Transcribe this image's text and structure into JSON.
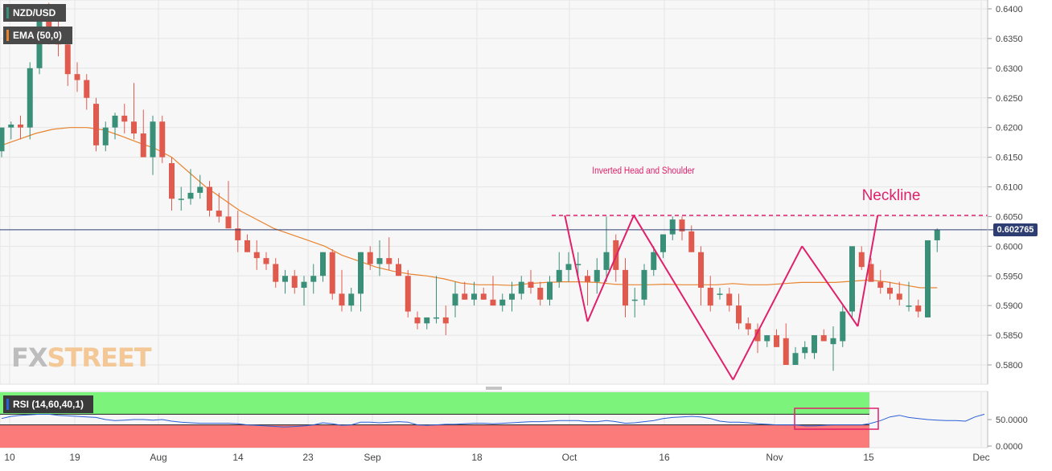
{
  "legend": {
    "pair": "NZD/USD",
    "ema": "EMA (50,0)",
    "rsi": "RSI (14,60,40,1)"
  },
  "watermark": {
    "fx": "FX",
    "street": "STREET"
  },
  "price_label": "0.602765",
  "annotations": {
    "pattern": "Inverted Head and Shoulder",
    "neckline": "Neckline"
  },
  "colors": {
    "bull": "#3a8f78",
    "bear": "#e05a4e",
    "ema": "#e8842f",
    "pattern": "#e0206b",
    "price_line": "#2e3e72",
    "rsi_line": "#2a5fd6",
    "rsi_upper": "#7cf47c",
    "rsi_lower": "#fb7a7a"
  },
  "chart_data": [
    {
      "type": "candlestick",
      "title": "NZD/USD",
      "y_ticks": [
        "0.6400",
        "0.6350",
        "0.6300",
        "0.6250",
        "0.6200",
        "0.6150",
        "0.6100",
        "0.6050",
        "0.6000",
        "0.5950",
        "0.5900",
        "0.5850",
        "0.5800"
      ],
      "ylim": [
        0.577,
        0.641
      ],
      "x_ticks": [
        "10",
        "19",
        "Aug",
        "14",
        "23",
        "Sep",
        "18",
        "Oct",
        "16",
        "Nov",
        "15",
        "Dec"
      ],
      "grid": true,
      "last_price": 0.602765,
      "neckline": 0.6052,
      "candles": [
        [
          0.616,
          0.62,
          0.615,
          0.62
        ],
        [
          0.62,
          0.621,
          0.618,
          0.6205
        ],
        [
          0.6205,
          0.622,
          0.618,
          0.62
        ],
        [
          0.62,
          0.631,
          0.618,
          0.63
        ],
        [
          0.63,
          0.64,
          0.629,
          0.639
        ],
        [
          0.639,
          0.641,
          0.634,
          0.636
        ],
        [
          0.636,
          0.638,
          0.632,
          0.634
        ],
        [
          0.634,
          0.635,
          0.627,
          0.629
        ],
        [
          0.629,
          0.631,
          0.626,
          0.628
        ],
        [
          0.628,
          0.629,
          0.623,
          0.625
        ],
        [
          0.624,
          0.625,
          0.616,
          0.617
        ],
        [
          0.617,
          0.621,
          0.616,
          0.62
        ],
        [
          0.62,
          0.6225,
          0.618,
          0.622
        ],
        [
          0.622,
          0.624,
          0.619,
          0.621
        ],
        [
          0.621,
          0.6275,
          0.618,
          0.619
        ],
        [
          0.619,
          0.623,
          0.615,
          0.615
        ],
        [
          0.615,
          0.622,
          0.612,
          0.621
        ],
        [
          0.621,
          0.622,
          0.614,
          0.615
        ],
        [
          0.614,
          0.615,
          0.606,
          0.608
        ],
        [
          0.608,
          0.61,
          0.606,
          0.608
        ],
        [
          0.608,
          0.613,
          0.607,
          0.609
        ],
        [
          0.609,
          0.612,
          0.608,
          0.61
        ],
        [
          0.61,
          0.611,
          0.605,
          0.606
        ],
        [
          0.606,
          0.609,
          0.604,
          0.605
        ],
        [
          0.605,
          0.611,
          0.603,
          0.603
        ],
        [
          0.603,
          0.606,
          0.599,
          0.601
        ],
        [
          0.601,
          0.602,
          0.599,
          0.599
        ],
        [
          0.599,
          0.601,
          0.596,
          0.598
        ],
        [
          0.598,
          0.599,
          0.596,
          0.597
        ],
        [
          0.597,
          0.598,
          0.593,
          0.594
        ],
        [
          0.594,
          0.596,
          0.592,
          0.595
        ],
        [
          0.595,
          0.596,
          0.592,
          0.593
        ],
        [
          0.593,
          0.595,
          0.59,
          0.594
        ],
        [
          0.594,
          0.597,
          0.592,
          0.595
        ],
        [
          0.595,
          0.599,
          0.594,
          0.599
        ],
        [
          0.599,
          0.5995,
          0.591,
          0.592
        ],
        [
          0.592,
          0.596,
          0.589,
          0.59
        ],
        [
          0.59,
          0.593,
          0.589,
          0.592
        ],
        [
          0.592,
          0.599,
          0.589,
          0.599
        ],
        [
          0.599,
          0.6,
          0.596,
          0.597
        ],
        [
          0.597,
          0.601,
          0.595,
          0.598
        ],
        [
          0.598,
          0.6015,
          0.596,
          0.597
        ],
        [
          0.597,
          0.598,
          0.595,
          0.595
        ],
        [
          0.595,
          0.596,
          0.588,
          0.589
        ],
        [
          0.588,
          0.589,
          0.586,
          0.587
        ],
        [
          0.587,
          0.588,
          0.586,
          0.588
        ],
        [
          0.588,
          0.595,
          0.587,
          0.588
        ],
        [
          0.588,
          0.59,
          0.585,
          0.587
        ],
        [
          0.59,
          0.594,
          0.588,
          0.592
        ],
        [
          0.592,
          0.594,
          0.591,
          0.591
        ],
        [
          0.591,
          0.594,
          0.59,
          0.592
        ],
        [
          0.592,
          0.593,
          0.591,
          0.591
        ],
        [
          0.591,
          0.595,
          0.59,
          0.59
        ],
        [
          0.59,
          0.592,
          0.589,
          0.591
        ],
        [
          0.591,
          0.594,
          0.589,
          0.592
        ],
        [
          0.592,
          0.595,
          0.591,
          0.594
        ],
        [
          0.594,
          0.596,
          0.592,
          0.593
        ],
        [
          0.593,
          0.594,
          0.59,
          0.591
        ],
        [
          0.591,
          0.595,
          0.59,
          0.594
        ],
        [
          0.594,
          0.599,
          0.593,
          0.596
        ],
        [
          0.596,
          0.599,
          0.594,
          0.597
        ],
        [
          0.597,
          0.599,
          0.595,
          0.597
        ],
        [
          0.595,
          0.596,
          0.59,
          0.594
        ],
        [
          0.594,
          0.598,
          0.592,
          0.596
        ],
        [
          0.596,
          0.605,
          0.594,
          0.599
        ],
        [
          0.601,
          0.602,
          0.594,
          0.596
        ],
        [
          0.596,
          0.598,
          0.588,
          0.59
        ],
        [
          0.591,
          0.593,
          0.588,
          0.591
        ],
        [
          0.591,
          0.597,
          0.59,
          0.596
        ],
        [
          0.596,
          0.6,
          0.595,
          0.599
        ],
        [
          0.599,
          0.602,
          0.598,
          0.602
        ],
        [
          0.602,
          0.605,
          0.601,
          0.6045
        ],
        [
          0.6045,
          0.605,
          0.601,
          0.6025
        ],
        [
          0.6025,
          0.6035,
          0.599,
          0.599
        ],
        [
          0.599,
          0.6,
          0.59,
          0.593
        ],
        [
          0.593,
          0.595,
          0.589,
          0.59
        ],
        [
          0.592,
          0.593,
          0.591,
          0.592
        ],
        [
          0.592,
          0.593,
          0.589,
          0.59
        ],
        [
          0.59,
          0.592,
          0.586,
          0.587
        ],
        [
          0.587,
          0.588,
          0.585,
          0.586
        ],
        [
          0.586,
          0.587,
          0.582,
          0.584
        ],
        [
          0.584,
          0.585,
          0.583,
          0.585
        ],
        [
          0.585,
          0.586,
          0.583,
          0.583
        ],
        [
          0.5845,
          0.587,
          0.58,
          0.58
        ],
        [
          0.58,
          0.583,
          0.58,
          0.582
        ],
        [
          0.582,
          0.584,
          0.581,
          0.583
        ],
        [
          0.582,
          0.585,
          0.581,
          0.585
        ],
        [
          0.585,
          0.586,
          0.584,
          0.584
        ],
        [
          0.5835,
          0.5865,
          0.579,
          0.5845
        ],
        [
          0.584,
          0.59,
          0.583,
          0.589
        ],
        [
          0.589,
          0.6,
          0.588,
          0.6
        ],
        [
          0.599,
          0.6,
          0.596,
          0.5965
        ],
        [
          0.597,
          0.598,
          0.594,
          0.594
        ],
        [
          0.594,
          0.596,
          0.592,
          0.593
        ],
        [
          0.593,
          0.594,
          0.591,
          0.592
        ],
        [
          0.592,
          0.594,
          0.59,
          0.591
        ],
        [
          0.59,
          0.594,
          0.589,
          0.59
        ],
        [
          0.59,
          0.591,
          0.588,
          0.589
        ],
        [
          0.588,
          0.601,
          0.588,
          0.601
        ],
        [
          0.601,
          0.603,
          0.599,
          0.6028
        ]
      ],
      "ema": [
        0.617,
        0.618,
        0.619,
        0.6197,
        0.62,
        0.62,
        0.6196,
        0.6186,
        0.6175,
        0.6165,
        0.615,
        0.6125,
        0.61,
        0.608,
        0.606,
        0.6045,
        0.603,
        0.602,
        0.601,
        0.6,
        0.5985,
        0.5975,
        0.5965,
        0.5958,
        0.5953,
        0.595,
        0.5945,
        0.5938,
        0.5935,
        0.5935,
        0.5934,
        0.5937,
        0.5939,
        0.594,
        0.594,
        0.5939,
        0.5936,
        0.5935,
        0.5935,
        0.5936,
        0.5935,
        0.5935,
        0.5935,
        0.5937,
        0.5935,
        0.5935,
        0.5937,
        0.5939,
        0.5939,
        0.5939,
        0.5941,
        0.5943,
        0.594,
        0.5935,
        0.593,
        0.593
      ]
    },
    {
      "type": "line",
      "title": "RSI (14,60,40,1)",
      "y_ticks": [
        "50.0000",
        "0.0000"
      ],
      "ylim": [
        0,
        100
      ],
      "upper_band": 60,
      "lower_band": 40,
      "values": [
        52,
        56,
        58,
        59,
        60,
        60,
        58,
        57,
        56,
        55,
        54,
        50,
        48,
        49,
        50,
        50,
        49,
        50,
        47,
        45,
        44,
        43,
        43,
        43,
        43,
        42,
        40,
        39,
        38,
        37,
        36,
        37,
        38,
        40,
        44,
        42,
        39,
        40,
        45,
        45,
        44,
        45,
        46,
        45,
        40,
        39,
        40,
        41,
        41,
        42,
        43,
        43,
        42,
        43,
        44,
        45,
        46,
        46,
        47,
        48,
        48,
        48,
        46,
        46,
        48,
        46,
        43,
        44,
        46,
        48,
        52,
        54,
        55,
        56,
        55,
        52,
        47,
        45,
        45,
        44,
        42,
        41,
        40,
        40,
        40,
        38,
        38,
        39,
        40,
        40,
        40,
        40,
        43,
        48,
        55,
        58,
        54,
        52,
        50,
        49,
        48,
        48,
        47,
        55,
        60
      ]
    }
  ]
}
